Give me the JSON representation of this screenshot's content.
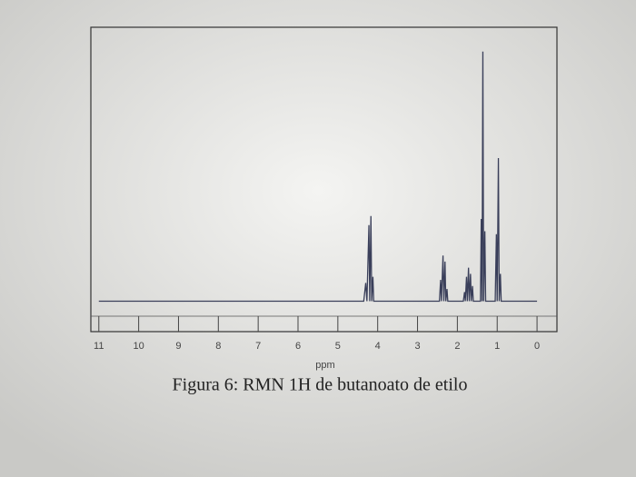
{
  "chart_data": {
    "type": "line",
    "title": "Figura 6: RMN 1H de butanoato de etilo",
    "x_label": "ppm",
    "xlim": [
      11.2,
      -0.5
    ],
    "ylim": [
      0,
      100
    ],
    "xticks": [
      11,
      10,
      9,
      8,
      7,
      6,
      5,
      4,
      3,
      2,
      1,
      0
    ],
    "color": "#3a3f5a",
    "series": [
      {
        "x": [
          11,
          4.35,
          4.3,
          4.27,
          4.22,
          4.2,
          4.17,
          4.15,
          4.12,
          4.1,
          2.45,
          2.42,
          2.4,
          2.36,
          2.34,
          2.31,
          2.29,
          2.26,
          2.24,
          1.85,
          1.82,
          1.8,
          1.77,
          1.75,
          1.72,
          1.7,
          1.67,
          1.65,
          1.62,
          1.6,
          1.42,
          1.4,
          1.38,
          1.36,
          1.34,
          1.31,
          1.29,
          1.05,
          1.02,
          1.0,
          0.97,
          0.95,
          0.92,
          0.9,
          0
        ],
        "values": [
          10,
          10,
          16,
          10,
          35,
          10,
          38,
          10,
          18,
          10,
          10,
          17,
          10,
          25,
          10,
          23,
          10,
          14,
          10,
          10,
          13,
          10,
          18,
          10,
          21,
          10,
          19,
          10,
          15,
          10,
          10,
          37,
          10,
          92,
          10,
          33,
          10,
          10,
          32,
          10,
          57,
          10,
          19,
          10,
          10
        ]
      }
    ]
  }
}
